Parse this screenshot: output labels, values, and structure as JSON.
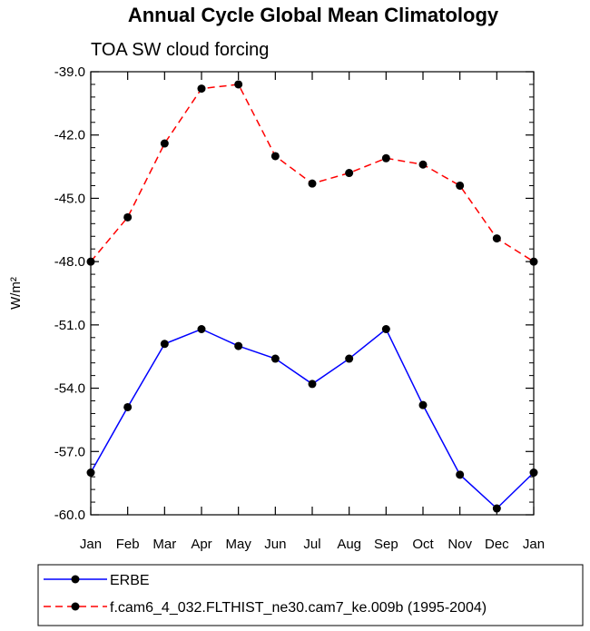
{
  "chart_data": {
    "type": "line",
    "title": "Annual Cycle Global Mean Climatology",
    "subtitle": "TOA SW cloud forcing",
    "ylabel": "W/m²",
    "xlabel": "",
    "categories": [
      "Jan",
      "Feb",
      "Mar",
      "Apr",
      "May",
      "Jun",
      "Jul",
      "Aug",
      "Sep",
      "Oct",
      "Nov",
      "Dec",
      "Jan"
    ],
    "ylim": [
      -60.0,
      -39.0
    ],
    "yticks": [
      -39.0,
      -42.0,
      -45.0,
      -48.0,
      -51.0,
      -54.0,
      -57.0,
      -60.0
    ],
    "ytick_labels": [
      "-39.0",
      "-42.0",
      "-45.0",
      "-48.0",
      "-51.0",
      "-54.0",
      "-57.0",
      "-60.0"
    ],
    "series": [
      {
        "name": "ERBE",
        "color": "#0000ff",
        "line_style": "solid",
        "marker": "filled-circle",
        "values": [
          -58.0,
          -54.9,
          -51.9,
          -51.2,
          -52.0,
          -52.6,
          -53.8,
          -52.6,
          -51.2,
          -54.8,
          -58.1,
          -59.7,
          -58.0
        ]
      },
      {
        "name": "f.cam6_4_032.FLTHIST_ne30.cam7_ke.009b (1995-2004)",
        "color": "#ff0000",
        "line_style": "dashed",
        "marker": "filled-circle",
        "values": [
          -48.0,
          -45.9,
          -42.4,
          -39.8,
          -39.6,
          -43.0,
          -44.3,
          -43.8,
          -43.1,
          -43.4,
          -44.4,
          -46.9,
          -48.0
        ]
      }
    ],
    "legend_position": "bottom-left"
  }
}
